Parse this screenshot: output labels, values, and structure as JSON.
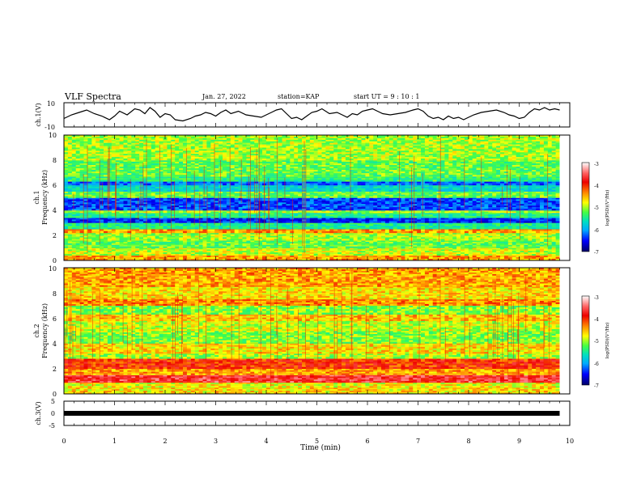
{
  "header": {
    "title": "VLF Spectra",
    "date": "Jan. 27, 2022",
    "station": "station=KAP",
    "start": "start UT =  9 : 10 : 1"
  },
  "x_axis": {
    "label": "Time (min)",
    "ticks": [
      "0",
      "1",
      "2",
      "3",
      "4",
      "5",
      "6",
      "7",
      "8",
      "9",
      "10"
    ]
  },
  "ch1_panel": {
    "ylabel": "ch.1(V)",
    "ticks": [
      "10",
      "-10"
    ]
  },
  "spec1_panel": {
    "ylabel_ch": "ch.1",
    "ylabel": "Frequency (kHz)",
    "ticks": [
      "0",
      "2",
      "4",
      "6",
      "8",
      "10"
    ]
  },
  "spec2_panel": {
    "ylabel_ch": "ch.2",
    "ylabel": "Frequency (kHz)",
    "ticks": [
      "0",
      "2",
      "4",
      "6",
      "8",
      "10"
    ]
  },
  "ch3_panel": {
    "ylabel": "ch.3(V)",
    "ticks": [
      "5",
      "0",
      "-5"
    ]
  },
  "colorbar": {
    "label": "log(PSD)(V²/Hz)",
    "ticks": [
      "-3",
      "-4",
      "-5",
      "-6",
      "-7"
    ],
    "colors": [
      "#ffffff",
      "#ff6060",
      "#ee0000",
      "#ff8800",
      "#ffff00",
      "#44ff44",
      "#00e0c0",
      "#00aaff",
      "#0000ff",
      "#000066"
    ]
  },
  "chart_data": [
    {
      "type": "line",
      "panel": "ch.1",
      "xlabel": "Time (min)",
      "ylabel": "ch.1(V)",
      "xlim": [
        0,
        10
      ],
      "ylim": [
        -10,
        10
      ],
      "x_end": 9.8,
      "series": [
        {
          "x": [
            0,
            0.15,
            0.3,
            0.45,
            0.6,
            0.75,
            0.9,
            1.0,
            1.1,
            1.25,
            1.4,
            1.5,
            1.6,
            1.7,
            1.8,
            1.9,
            2.0,
            2.1,
            2.2,
            2.35,
            2.5,
            2.6,
            2.7,
            2.8,
            2.9,
            3.0,
            3.1,
            3.2,
            3.3,
            3.45,
            3.6,
            3.75,
            3.9,
            4.0,
            4.1,
            4.2,
            4.3,
            4.4,
            4.5,
            4.6,
            4.7,
            4.8,
            4.9,
            5.0,
            5.1,
            5.25,
            5.4,
            5.5,
            5.6,
            5.7,
            5.8,
            5.9,
            6.0,
            6.1,
            6.2,
            6.3,
            6.45,
            6.6,
            6.75,
            6.9,
            7.0,
            7.1,
            7.2,
            7.3,
            7.4,
            7.5,
            7.6,
            7.7,
            7.8,
            7.9,
            8.0,
            8.1,
            8.25,
            8.4,
            8.55,
            8.7,
            8.8,
            8.9,
            9.0,
            9.1,
            9.2,
            9.3,
            9.4,
            9.5,
            9.6,
            9.7,
            9.8
          ],
          "y": [
            -3,
            0,
            2,
            4,
            1,
            -1,
            -4,
            -1,
            3,
            0,
            5,
            4,
            1,
            6,
            3,
            -2,
            1,
            0,
            -4,
            -5,
            -3,
            -1,
            0,
            2,
            1,
            -1,
            2,
            4,
            1,
            3,
            0,
            -1,
            -2,
            0,
            2,
            4,
            5,
            1,
            -3,
            -2,
            -4,
            -1,
            2,
            3,
            5,
            1,
            2,
            0,
            -2,
            1,
            0,
            3,
            4,
            5,
            3,
            1,
            0,
            1,
            2,
            4,
            5,
            3,
            -1,
            -3,
            -2,
            -4,
            -1,
            -3,
            -2,
            -4,
            -2,
            0,
            2,
            3,
            4,
            2,
            0,
            -1,
            -3,
            -2,
            2,
            5,
            4,
            6,
            4,
            5,
            4
          ]
        }
      ]
    },
    {
      "type": "heatmap",
      "panel": "ch.1",
      "xlabel": "Time (min)",
      "ylabel": "Frequency (kHz)",
      "xlim": [
        0,
        10
      ],
      "ylim": [
        0,
        10
      ],
      "x_end": 9.8,
      "zlabel": "log(PSD)(V²/Hz)",
      "zlim": [
        -7,
        -3
      ],
      "freq_bands_kHz": [
        {
          "f0": 0.0,
          "f1": 0.4,
          "z": -4.3
        },
        {
          "f0": 0.4,
          "f1": 1.0,
          "z": -4.7
        },
        {
          "f0": 1.0,
          "f1": 1.6,
          "z": -5.0
        },
        {
          "f0": 1.6,
          "f1": 2.2,
          "z": -4.8
        },
        {
          "f0": 2.2,
          "f1": 2.5,
          "z": -4.3
        },
        {
          "f0": 2.5,
          "f1": 3.0,
          "z": -5.3
        },
        {
          "f0": 3.0,
          "f1": 3.4,
          "z": -6.4
        },
        {
          "f0": 3.4,
          "f1": 3.8,
          "z": -5.3
        },
        {
          "f0": 3.8,
          "f1": 4.0,
          "z": -4.8
        },
        {
          "f0": 4.0,
          "f1": 5.0,
          "z": -6.3
        },
        {
          "f0": 5.0,
          "f1": 5.5,
          "z": -5.0
        },
        {
          "f0": 5.5,
          "f1": 6.0,
          "z": -5.6
        },
        {
          "f0": 6.0,
          "f1": 6.3,
          "z": -6.2
        },
        {
          "f0": 6.3,
          "f1": 6.7,
          "z": -5.2
        },
        {
          "f0": 6.7,
          "f1": 8.0,
          "z": -5.0
        },
        {
          "f0": 8.0,
          "f1": 10.0,
          "z": -4.8
        }
      ]
    },
    {
      "type": "heatmap",
      "panel": "ch.2",
      "xlabel": "Time (min)",
      "ylabel": "Frequency (kHz)",
      "xlim": [
        0,
        10
      ],
      "ylim": [
        0,
        10
      ],
      "x_end": 9.8,
      "zlabel": "log(PSD)(V²/Hz)",
      "zlim": [
        -7,
        -3
      ],
      "freq_bands_kHz": [
        {
          "f0": 0.0,
          "f1": 0.5,
          "z": -4.5
        },
        {
          "f0": 0.5,
          "f1": 0.9,
          "z": -4.6
        },
        {
          "f0": 0.9,
          "f1": 1.5,
          "z": -3.6
        },
        {
          "f0": 1.5,
          "f1": 2.0,
          "z": -4.3
        },
        {
          "f0": 2.0,
          "f1": 2.8,
          "z": -3.9
        },
        {
          "f0": 2.8,
          "f1": 3.2,
          "z": -4.8
        },
        {
          "f0": 3.2,
          "f1": 4.0,
          "z": -4.5
        },
        {
          "f0": 4.0,
          "f1": 5.0,
          "z": -4.9
        },
        {
          "f0": 5.0,
          "f1": 5.8,
          "z": -4.7
        },
        {
          "f0": 5.8,
          "f1": 6.3,
          "z": -4.4
        },
        {
          "f0": 6.3,
          "f1": 7.0,
          "z": -4.9
        },
        {
          "f0": 7.0,
          "f1": 7.5,
          "z": -4.2
        },
        {
          "f0": 7.5,
          "f1": 8.5,
          "z": -4.5
        },
        {
          "f0": 8.5,
          "f1": 10.0,
          "z": -4.3
        }
      ]
    },
    {
      "type": "line",
      "panel": "ch.3",
      "xlabel": "Time (min)",
      "ylabel": "ch.3(V)",
      "xlim": [
        0,
        10
      ],
      "ylim": [
        -5,
        5
      ],
      "x_end": 9.8,
      "series": [
        {
          "x": [
            0,
            9.8
          ],
          "y": [
            0,
            0
          ]
        }
      ]
    }
  ]
}
